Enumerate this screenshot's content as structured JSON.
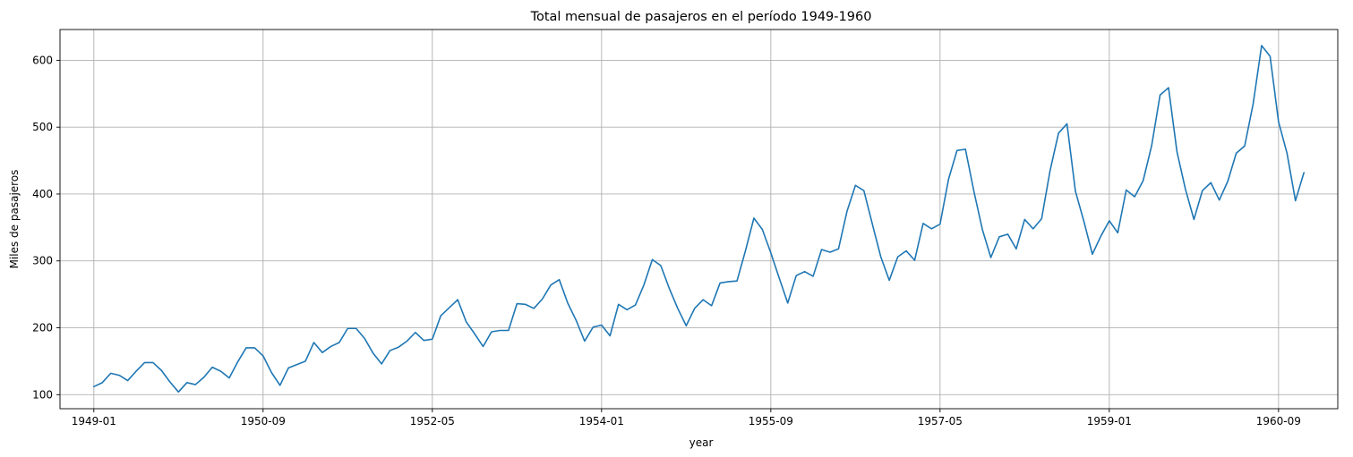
{
  "chart_data": {
    "type": "line",
    "title": "Total mensual de pasajeros en el período 1949-1960",
    "xlabel": "year",
    "ylabel": "Miles de pasajeros",
    "grid": true,
    "x_start": "1949-01",
    "x_end": "1960-12",
    "xlim": [
      "1948-09",
      "1961-04"
    ],
    "ylim": [
      79,
      646
    ],
    "x_ticks": [
      "1949-01",
      "1950-09",
      "1952-05",
      "1954-01",
      "1955-09",
      "1957-05",
      "1959-01",
      "1960-09"
    ],
    "y_ticks": [
      100,
      200,
      300,
      400,
      500,
      600
    ],
    "series": [
      {
        "color": "#1f77b4",
        "values": [
          112,
          118,
          132,
          129,
          121,
          135,
          148,
          148,
          136,
          119,
          104,
          118,
          115,
          126,
          141,
          135,
          125,
          149,
          170,
          170,
          158,
          133,
          114,
          140,
          145,
          150,
          178,
          163,
          172,
          178,
          199,
          199,
          184,
          162,
          146,
          166,
          171,
          180,
          193,
          181,
          183,
          218,
          230,
          242,
          209,
          191,
          172,
          194,
          196,
          196,
          236,
          235,
          229,
          243,
          264,
          272,
          237,
          211,
          180,
          201,
          204,
          188,
          235,
          227,
          234,
          264,
          302,
          293,
          259,
          229,
          203,
          229,
          242,
          233,
          267,
          269,
          270,
          315,
          364,
          347,
          312,
          274,
          237,
          278,
          284,
          277,
          317,
          313,
          318,
          374,
          413,
          405,
          355,
          306,
          271,
          306,
          315,
          301,
          356,
          348,
          355,
          422,
          465,
          467,
          404,
          347,
          305,
          336,
          340,
          318,
          362,
          348,
          363,
          435,
          491,
          505,
          404,
          359,
          310,
          337,
          360,
          342,
          406,
          396,
          420,
          472,
          548,
          559,
          463,
          407,
          362,
          405,
          417,
          391,
          419,
          461,
          472,
          535,
          622,
          606,
          508,
          461,
          390,
          432
        ]
      }
    ]
  }
}
